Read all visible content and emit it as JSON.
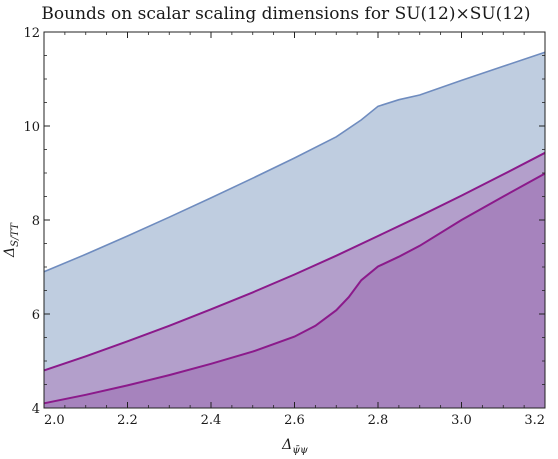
{
  "chart_data": {
    "type": "area",
    "title": "Bounds on scalar scaling dimensions for SU(12)×SU(12)",
    "xlabel": {
      "base": "Δ",
      "sub": "ψ̄ψ"
    },
    "ylabel": {
      "base": "Δ",
      "sub": "S/TT"
    },
    "xlim": [
      2.0,
      3.2
    ],
    "ylim": [
      4,
      12
    ],
    "xticks": [
      2.0,
      2.2,
      2.4,
      2.6,
      2.8,
      3.0,
      3.2
    ],
    "xtick_labels": [
      "2.0",
      "2.2",
      "2.4",
      "2.6",
      "2.8",
      "3.0",
      "3.2"
    ],
    "yticks": [
      4,
      6,
      8,
      10,
      12
    ],
    "ytick_labels": [
      "4",
      "6",
      "8",
      "10",
      "12"
    ],
    "grid": false,
    "legend": "none",
    "series": [
      {
        "color": "#6f8cbf",
        "fill": "#bfcde0",
        "x": [
          2.0,
          2.1,
          2.2,
          2.3,
          2.4,
          2.5,
          2.6,
          2.7,
          2.76,
          2.8,
          2.85,
          2.9,
          3.0,
          3.1,
          3.2
        ],
        "y": [
          6.9,
          7.27,
          7.66,
          8.06,
          8.47,
          8.89,
          9.32,
          9.77,
          10.13,
          10.42,
          10.56,
          10.66,
          10.97,
          11.27,
          11.57
        ]
      },
      {
        "color": "#8b1a8b",
        "fill": "#b39fcb",
        "x": [
          2.0,
          2.1,
          2.2,
          2.3,
          2.4,
          2.5,
          2.6,
          2.7,
          2.8,
          2.9,
          3.0,
          3.1,
          3.2
        ],
        "y": [
          4.8,
          5.1,
          5.42,
          5.75,
          6.1,
          6.46,
          6.84,
          7.24,
          7.66,
          8.08,
          8.52,
          8.97,
          9.43
        ]
      },
      {
        "color": "#8b1a8b",
        "fill": "#a683bd",
        "x": [
          2.0,
          2.1,
          2.2,
          2.3,
          2.4,
          2.5,
          2.6,
          2.65,
          2.7,
          2.73,
          2.76,
          2.8,
          2.85,
          2.9,
          3.0,
          3.1,
          3.2
        ],
        "y": [
          4.1,
          4.28,
          4.48,
          4.7,
          4.94,
          5.2,
          5.52,
          5.75,
          6.08,
          6.36,
          6.72,
          7.01,
          7.22,
          7.45,
          8.0,
          8.5,
          8.99
        ]
      }
    ]
  }
}
